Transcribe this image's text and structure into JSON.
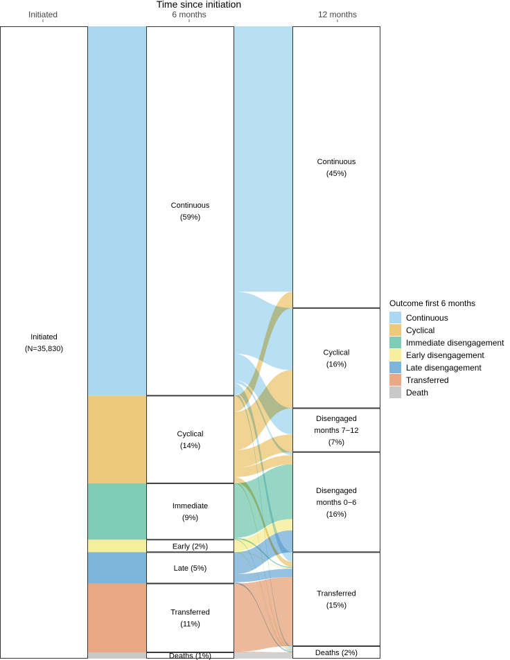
{
  "chart_data": {
    "type": "alluvial",
    "title": "Time since initiation",
    "axes": [
      {
        "id": "a0",
        "label": "Initiated"
      },
      {
        "id": "a1",
        "label": "6 months"
      },
      {
        "id": "a2",
        "label": "12 months"
      }
    ],
    "nodes": {
      "a0": [
        {
          "id": "init",
          "label": "Initiated (N=35,830)",
          "lines": [
            "Initiated",
            "(N=35,830)"
          ],
          "pct": 100
        }
      ],
      "a1": [
        {
          "id": "cont6",
          "label": "Continuous (59%)",
          "lines": [
            "Continuous",
            "(59%)"
          ],
          "pct": 59,
          "category": "Continuous"
        },
        {
          "id": "cyc6",
          "label": "Cyclical (14%)",
          "lines": [
            "Cyclical",
            "(14%)"
          ],
          "pct": 14,
          "category": "Cyclical"
        },
        {
          "id": "imm6",
          "label": "Immediate (9%)",
          "lines": [
            "Immediate",
            "(9%)"
          ],
          "pct": 9,
          "category": "Immediate disengagement"
        },
        {
          "id": "early6",
          "label": "Early (2%)",
          "lines": [
            "Early (2%)"
          ],
          "pct": 2,
          "category": "Early disengagement"
        },
        {
          "id": "late6",
          "label": "Late (5%)",
          "lines": [
            "Late (5%)"
          ],
          "pct": 5,
          "category": "Late disengagement"
        },
        {
          "id": "trans6",
          "label": "Transferred (11%)",
          "lines": [
            "Transferred",
            "(11%)"
          ],
          "pct": 11,
          "category": "Transferred"
        },
        {
          "id": "death6",
          "label": "Deaths (1%)",
          "lines": [
            "Deaths (1%)"
          ],
          "pct": 1,
          "category": "Death"
        }
      ],
      "a2": [
        {
          "id": "cont12",
          "label": "Continuous (45%)",
          "lines": [
            "Continuous",
            "(45%)"
          ],
          "pct": 45
        },
        {
          "id": "cyc12",
          "label": "Cyclical (16%)",
          "lines": [
            "Cyclical",
            "(16%)"
          ],
          "pct": 16
        },
        {
          "id": "dis712",
          "label": "Disengaged months 7-12 (7%)",
          "lines": [
            "Disengaged",
            "months 7−12",
            "(7%)"
          ],
          "pct": 7
        },
        {
          "id": "dis06",
          "label": "Disengaged months 0-6 (16%)",
          "lines": [
            "Disengaged",
            "months 0−6",
            "(16%)"
          ],
          "pct": 16
        },
        {
          "id": "trans12",
          "label": "Transferred (15%)",
          "lines": [
            "Transferred",
            "(15%)"
          ],
          "pct": 15
        },
        {
          "id": "death12",
          "label": "Deaths (2%)",
          "lines": [
            "Deaths (2%)"
          ],
          "pct": 2
        }
      ]
    },
    "flows_6_to_12": [
      {
        "from": "cont6",
        "to": "cont12",
        "pct": 42.4
      },
      {
        "from": "cont6",
        "to": "cyc12",
        "pct": 9.9
      },
      {
        "from": "cont6",
        "to": "dis712",
        "pct": 4.2
      },
      {
        "from": "cont6",
        "to": "dis06",
        "pct": 0.5
      },
      {
        "from": "cont6",
        "to": "trans12",
        "pct": 1.5
      },
      {
        "from": "cont6",
        "to": "death12",
        "pct": 0.5
      },
      {
        "from": "cyc6",
        "to": "cont12",
        "pct": 2.6
      },
      {
        "from": "cyc6",
        "to": "cyc12",
        "pct": 6.1
      },
      {
        "from": "cyc6",
        "to": "dis712",
        "pct": 2.8
      },
      {
        "from": "cyc6",
        "to": "dis06",
        "pct": 1.5
      },
      {
        "from": "cyc6",
        "to": "trans12",
        "pct": 0.8
      },
      {
        "from": "cyc6",
        "to": "death12",
        "pct": 0.2
      },
      {
        "from": "imm6",
        "to": "dis06",
        "pct": 8.7
      },
      {
        "from": "imm6",
        "to": "trans12",
        "pct": 0.2
      },
      {
        "from": "imm6",
        "to": "death12",
        "pct": 0.1
      },
      {
        "from": "early6",
        "to": "dis06",
        "pct": 1.8
      },
      {
        "from": "early6",
        "to": "trans12",
        "pct": 0.1
      },
      {
        "from": "early6",
        "to": "death12",
        "pct": 0.1
      },
      {
        "from": "late6",
        "to": "dis06",
        "pct": 3.5
      },
      {
        "from": "late6",
        "to": "trans12",
        "pct": 1.3
      },
      {
        "from": "late6",
        "to": "death12",
        "pct": 0.2
      },
      {
        "from": "trans6",
        "to": "trans12",
        "pct": 10.9
      },
      {
        "from": "trans6",
        "to": "death12",
        "pct": 0.1
      },
      {
        "from": "death6",
        "to": "death12",
        "pct": 1.0
      }
    ],
    "legend": {
      "title": "Outcome first 6 months",
      "position": "right",
      "items": [
        {
          "label": "Continuous",
          "color": "#A9D8F0"
        },
        {
          "label": "Cyclical",
          "color": "#EDCA7B"
        },
        {
          "label": "Immediate disengagement",
          "color": "#7FCDB4"
        },
        {
          "label": "Early disengagement",
          "color": "#F5EE9A"
        },
        {
          "label": "Late disengagement",
          "color": "#7EB5DA"
        },
        {
          "label": "Transferred",
          "color": "#E8A984"
        },
        {
          "label": "Death",
          "color": "#C8C8C8"
        }
      ]
    }
  }
}
